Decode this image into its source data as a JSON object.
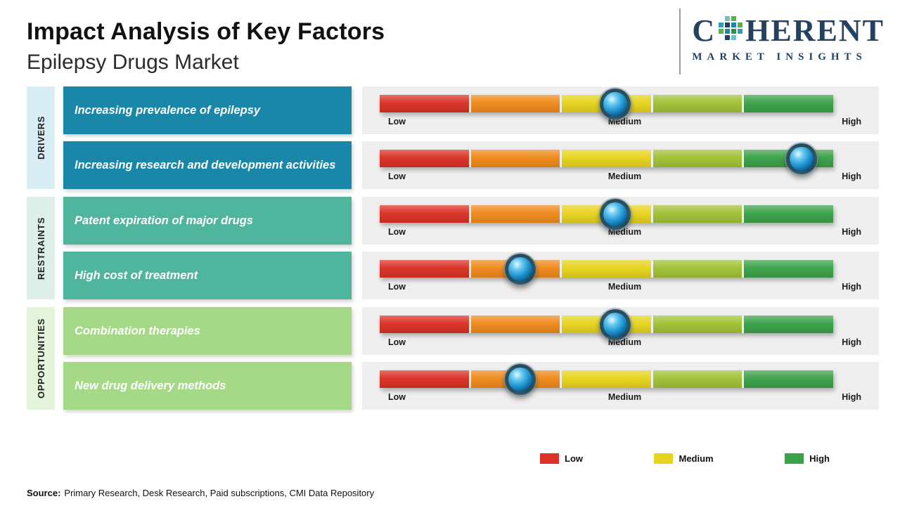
{
  "chart_data": {
    "type": "table",
    "title": "Impact Analysis of Key Factors",
    "subtitle": "Epilepsy Drugs Market",
    "scale": [
      "Low",
      "Medium",
      "High"
    ],
    "rows": [
      {
        "group": "Drivers",
        "factor": "Increasing prevalence of epilepsy",
        "impact": "Medium",
        "position_percent": 52
      },
      {
        "group": "Drivers",
        "factor": "Increasing research and development activities",
        "impact": "High",
        "position_percent": 93
      },
      {
        "group": "Restraints",
        "factor": "Patent expiration of major drugs",
        "impact": "Medium",
        "position_percent": 52
      },
      {
        "group": "Restraints",
        "factor": "High cost of treatment",
        "impact": "Low-Medium",
        "position_percent": 31
      },
      {
        "group": "Opportunities",
        "factor": "Combination therapies",
        "impact": "Medium",
        "position_percent": 52
      },
      {
        "group": "Opportunities",
        "factor": "New drug delivery methods",
        "impact": "Low-Medium",
        "position_percent": 31
      }
    ]
  },
  "header": {
    "title": "Impact Analysis of Key Factors",
    "subtitle": "Epilepsy Drugs Market"
  },
  "logo": {
    "text_before_o": "C",
    "text_after_o": "HERENT",
    "subtext": "MARKET INSIGHTS",
    "color": "#24415f"
  },
  "scale": {
    "low": "Low",
    "medium": "Medium",
    "high": "High"
  },
  "bar": {
    "track_bg": "#efefef",
    "segment_colors": [
      "#da3226",
      "#ef8a1d",
      "#e7d41f",
      "#a2c237",
      "#3ca24a"
    ]
  },
  "groups": [
    {
      "label": "DRIVERS",
      "strip_color": "#d9edf4",
      "box_color": "#1a87a9",
      "factors": [
        {
          "label": "Increasing prevalence of epilepsy",
          "impact_percent": 52
        },
        {
          "label": "Increasing research and development activities",
          "impact_percent": 93
        }
      ]
    },
    {
      "label": "RESTRAINTS",
      "strip_color": "#ddefe8",
      "box_color": "#4fb59c",
      "factors": [
        {
          "label": "Patent expiration of major drugs",
          "impact_percent": 52
        },
        {
          "label": "High cost of treatment",
          "impact_percent": 31
        }
      ]
    },
    {
      "label": "OPPORTUNITIES",
      "strip_color": "#e4f4da",
      "box_color": "#a5d987",
      "factors": [
        {
          "label": "Combination therapies",
          "impact_percent": 52
        },
        {
          "label": "New drug delivery methods",
          "impact_percent": 31
        }
      ]
    }
  ],
  "legend": [
    {
      "label": "Low",
      "color": "#da3226"
    },
    {
      "label": "Medium",
      "color": "#e7d41f"
    },
    {
      "label": "High",
      "color": "#3ca24a"
    }
  ],
  "source": {
    "prefix": "Source:",
    "text": "Primary Research, Desk Research, Paid subscriptions, CMI Data Repository"
  }
}
